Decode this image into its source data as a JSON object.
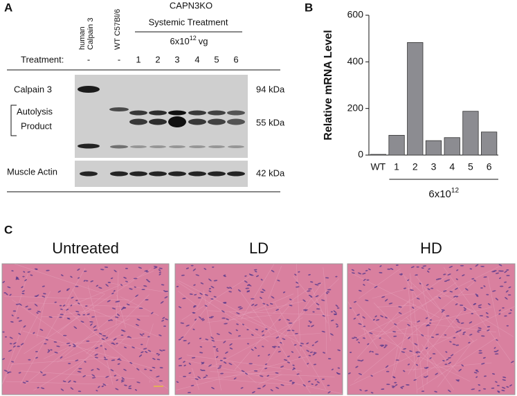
{
  "panel_a": {
    "letter": "A",
    "group_title": "CAPN3KO",
    "treatment_title": "Systemic Treatment",
    "dose": {
      "base": "6x10",
      "exponent": "12",
      "unit": "vg"
    },
    "lane_labels": [
      [
        "human",
        "Calpain 3"
      ],
      [
        "WT C57Bl/6"
      ]
    ],
    "treatment_label": "Treatment:",
    "treatments": [
      "-",
      "-",
      "1",
      "2",
      "3",
      "4",
      "5",
      "6"
    ],
    "row_labels": {
      "calpain": "Calpain 3",
      "autolysis": [
        "Autolysis",
        "Product"
      ],
      "actin": "Muscle Actin"
    },
    "markers": [
      "94 kDa",
      "55 kDa",
      "42 kDa"
    ]
  },
  "chart_data": {
    "type": "bar",
    "letter": "B",
    "ylabel": "Relative mRNA Level",
    "categories": [
      "WT",
      "1",
      "2",
      "3",
      "4",
      "5",
      "6"
    ],
    "values": [
      3,
      85,
      483,
      62,
      75,
      188,
      99
    ],
    "color": "#8c8c91",
    "ylim": [
      0,
      600
    ],
    "yticks": [
      0,
      200,
      400,
      600
    ],
    "group_label": {
      "base": "6x10",
      "exponent": "12"
    },
    "grid": false
  },
  "panel_c": {
    "letter": "C",
    "titles": [
      "Untreated",
      "LD",
      "HD"
    ]
  }
}
